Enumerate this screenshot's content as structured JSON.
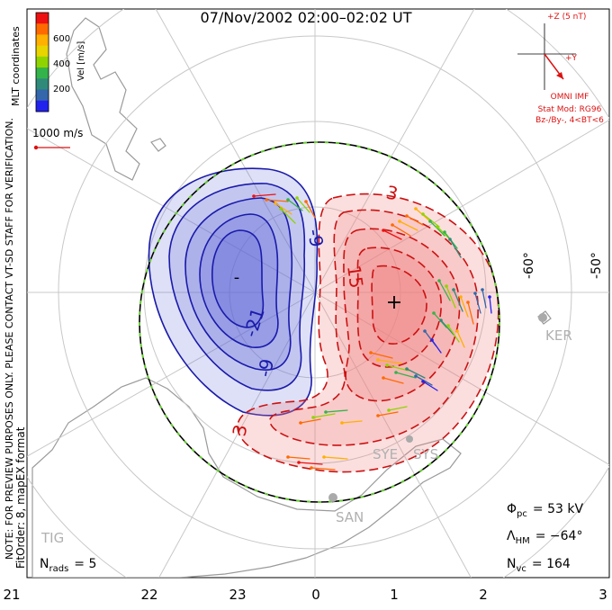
{
  "title": "07/Nov/2002 02:00–02:02 UT",
  "coordinates_label": "MLT coordinates",
  "colorbar": {
    "label": "Vel [m/s]",
    "ticks": [
      "600",
      "400",
      "200"
    ],
    "colors": [
      "#ee1111",
      "#ff6a00",
      "#ffb000",
      "#e8d400",
      "#8fd400",
      "#34b34a",
      "#2f8a7a",
      "#3366aa",
      "#2222ee"
    ]
  },
  "reference_vector_label": "1000 m/s",
  "notes": [
    "NOTE: FOR PREVIEW PURPOSES ONLY. PLEASE CONTACT VT-SD STAFF FOR VERIFICATION.",
    "FitOrder: 8, mapEX format"
  ],
  "imf": {
    "plus_z_label": "+Z (5 nT)",
    "plus_y_label": "+Y",
    "source_label": "OMNI IMF",
    "model_line1": "Stat Mod: RG96",
    "model_line2": "Bz-/By-, 4<BT<6"
  },
  "contour_labels": {
    "negative": [
      "-9",
      "-21",
      "-9"
    ],
    "positive": [
      "3",
      "15",
      "3"
    ],
    "min_marker": "-",
    "max_marker": "+"
  },
  "latitude_labels": [
    "-60°",
    "-50°"
  ],
  "stations": [
    "KER",
    "SYE",
    "SYS",
    "SAN",
    "TIG"
  ],
  "stats": {
    "phi_pc_symbol": "Φ",
    "phi_pc_sub": "pc",
    "phi_pc_value": "= 53 kV",
    "lambda_hm_symbol": "Λ",
    "lambda_hm_sub": "HM",
    "lambda_hm_value": "= −64°",
    "n_vc_symbol": "N",
    "n_vc_sub": "vc",
    "n_vc_value": "= 164",
    "n_rads_symbol": "N",
    "n_rads_sub": "rads",
    "n_rads_value": "= 5"
  },
  "mlt_axis": [
    "21",
    "22",
    "23",
    "0",
    "1",
    "2",
    "3"
  ],
  "colors": {
    "negative_contour": "#1a1aaa",
    "positive_contour": "#cc1111",
    "negative_fill": "#5c63d6",
    "positive_fill": "#f07f7f",
    "hmb": "#66cc33",
    "grid": "#c8c8c8",
    "coast": "#9a9a9a",
    "imf_vector": "#dd1111"
  }
}
